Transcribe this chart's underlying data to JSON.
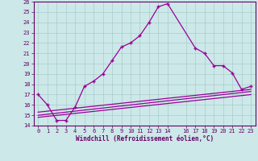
{
  "xlabel": "Windchill (Refroidissement éolien,°C)",
  "background_color": "#cce8e8",
  "line_color": "#990099",
  "xlim": [
    -0.5,
    23.5
  ],
  "ylim": [
    14,
    26
  ],
  "yticks": [
    14,
    15,
    16,
    17,
    18,
    19,
    20,
    21,
    22,
    23,
    24,
    25,
    26
  ],
  "xticks": [
    0,
    1,
    2,
    3,
    4,
    5,
    6,
    7,
    8,
    9,
    10,
    11,
    12,
    13,
    14,
    16,
    17,
    18,
    19,
    20,
    21,
    22,
    23
  ],
  "line1_x": [
    0,
    1,
    2,
    3,
    4,
    5,
    6,
    7,
    8,
    9,
    10,
    11,
    12,
    13,
    14,
    17,
    18,
    19,
    20,
    21,
    22,
    23
  ],
  "line1_y": [
    17,
    16,
    14.5,
    14.5,
    15.8,
    17.8,
    18.3,
    19.0,
    20.3,
    21.6,
    22.0,
    22.7,
    24.0,
    25.5,
    25.8,
    21.5,
    21.0,
    19.8,
    19.8,
    19.1,
    17.5,
    17.8
  ],
  "line2_x": [
    0,
    23
  ],
  "line2_y": [
    15.0,
    17.3
  ],
  "line3_x": [
    0,
    23
  ],
  "line3_y": [
    14.8,
    17.0
  ],
  "line4_x": [
    0,
    23
  ],
  "line4_y": [
    15.3,
    17.5
  ],
  "grid_color": "#aacccc",
  "font_color": "#660066",
  "grid_linewidth": 0.5,
  "line_linewidth": 0.9,
  "marker_size": 3.5,
  "xlabel_fontsize": 5.5,
  "tick_fontsize": 5.0
}
